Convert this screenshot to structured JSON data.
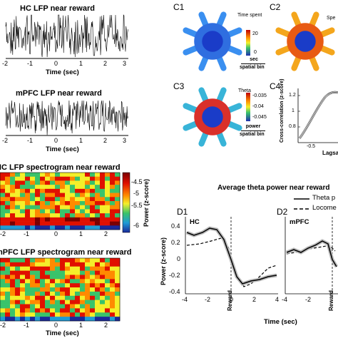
{
  "panelA": {
    "title_hc": "HC LFP near reward",
    "title_mpfc": "mPFC LFP near reward",
    "xticks": [
      "-2",
      "-1",
      "0",
      "1",
      "2",
      "3"
    ],
    "xlabel": "Time (sec)"
  },
  "panelB": {
    "title_hc": "HC LFP spectrogram near reward",
    "title_mpfc": "mPFC LFP spectrogram near reward",
    "xticks": [
      "-2",
      "-1",
      "0",
      "1",
      "2"
    ],
    "xlabel": "Time (sec)",
    "colorbar_ticks": [
      "-4.5",
      "-5",
      "-5.5",
      "-6"
    ],
    "colorbar_label": "Power (z-score)",
    "colors": [
      "#7a0000",
      "#e01000",
      "#ff8a00",
      "#f4ef2a",
      "#39c36b",
      "#1f9bd6",
      "#1a2a9a"
    ]
  },
  "panelC": {
    "C1": {
      "label": "C1",
      "map_title": "Time spent",
      "cbar_ticks": [
        "20",
        "0"
      ],
      "unit": "sec",
      "unit_den": "spatial bin"
    },
    "C2": {
      "label": "C2",
      "map_title": "Spe"
    },
    "C3": {
      "label": "C3",
      "map_title": "Theta",
      "cbar_ticks": [
        "-0.035",
        "-0.04",
        "-0.045"
      ],
      "unit": "power",
      "unit_den": "spatial bin"
    },
    "C4": {
      "label": "C4",
      "ylabel": "Cross-correlation (z-score)",
      "yticks": [
        "1.2",
        "1",
        "0.8"
      ],
      "xticks": [
        "-0.5"
      ],
      "xlabel": "Lagsa"
    }
  },
  "panelD": {
    "title": "Average theta power near reward",
    "legend": [
      "Theta p",
      "Locome"
    ],
    "D1": {
      "label": "D1",
      "region": "HC",
      "reward_label": "Reward"
    },
    "D2": {
      "label": "D2",
      "region": "mPFC",
      "reward_label": "Reward"
    },
    "yticks": [
      "0.4",
      "0.2",
      "0",
      "-0.2",
      "-0.4"
    ],
    "xticks_d1": [
      "-4",
      "-2",
      "0",
      "2",
      "4"
    ],
    "xticks_d2": [
      "-4",
      "-2"
    ],
    "ylabel": "Power (z-score)",
    "xlabel": "Time (sec)"
  }
}
